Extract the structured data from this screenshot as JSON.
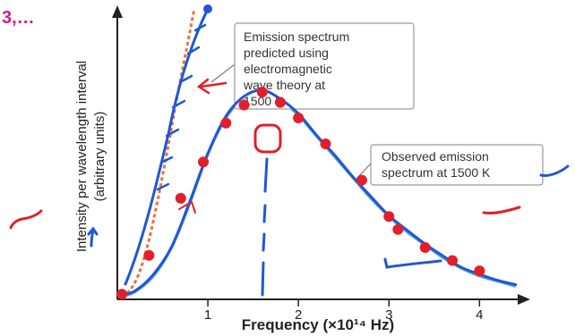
{
  "top_fragment": "3,…",
  "colors": {
    "fragment": "#d01c8b",
    "axis": "#222222",
    "observed_curve": "#5ea3c9",
    "theory_curve": "#e8743b",
    "ink_blue": "#1f57d6",
    "ink_red": "#e0202a",
    "callout_border": "#9a9a9a"
  },
  "chart_data": {
    "type": "line",
    "title": "",
    "xlabel": "Frequency (×10¹⁴ Hz)",
    "ylabel": "Intensity per wavelength interval\n(arbitrary units)",
    "xlim": [
      0,
      4.6
    ],
    "ylim": [
      0,
      100
    ],
    "x_ticks": [
      1,
      2,
      3,
      4
    ],
    "x_tick_labels": [
      "1",
      "2",
      "3",
      "4"
    ],
    "grid": false,
    "legend": "callouts",
    "series": [
      {
        "name": "Observed emission spectrum at 1500 K",
        "color": "#5ea3c9",
        "x": [
          0.05,
          0.2,
          0.4,
          0.6,
          0.8,
          1.0,
          1.2,
          1.4,
          1.6,
          1.8,
          2.0,
          2.2,
          2.4,
          2.6,
          2.8,
          3.0,
          3.2,
          3.4,
          3.6,
          3.8,
          4.0,
          4.2,
          4.4
        ],
        "values": [
          1,
          3,
          9,
          20,
          37,
          56,
          70,
          78,
          80,
          77,
          71,
          63,
          55,
          47,
          39,
          32,
          26,
          21,
          16,
          12,
          9,
          7,
          5
        ]
      },
      {
        "name": "Emission spectrum predicted using electromagnetic wave theory at 1500 K",
        "color": "#e8743b",
        "x": [
          0.05,
          0.15,
          0.25,
          0.35,
          0.45,
          0.55,
          0.65,
          0.75,
          0.85
        ],
        "values": [
          1,
          4,
          11,
          23,
          39,
          57,
          76,
          94,
          112
        ]
      }
    ],
    "annotations": [
      {
        "target": "theory",
        "lines": [
          "Emission spectrum",
          "predicted using",
          "electromagnetic",
          "wave theory at",
          "1500 K"
        ]
      },
      {
        "target": "observed",
        "lines": [
          "Observed emission",
          "spectrum at 1500 K"
        ]
      }
    ]
  },
  "handwriting": {
    "marked_points": [
      [
        0.05,
        2
      ],
      [
        0.35,
        17
      ],
      [
        0.7,
        39
      ],
      [
        0.95,
        53
      ],
      [
        1.2,
        68
      ],
      [
        1.4,
        75
      ],
      [
        1.6,
        80
      ],
      [
        1.8,
        76
      ],
      [
        2.0,
        70
      ],
      [
        2.3,
        60
      ],
      [
        2.7,
        46
      ],
      [
        3.0,
        32
      ],
      [
        3.1,
        27
      ],
      [
        3.4,
        20
      ],
      [
        3.7,
        15
      ],
      [
        4.0,
        11
      ]
    ],
    "peak_marker": [
      1.6,
      82
    ]
  }
}
